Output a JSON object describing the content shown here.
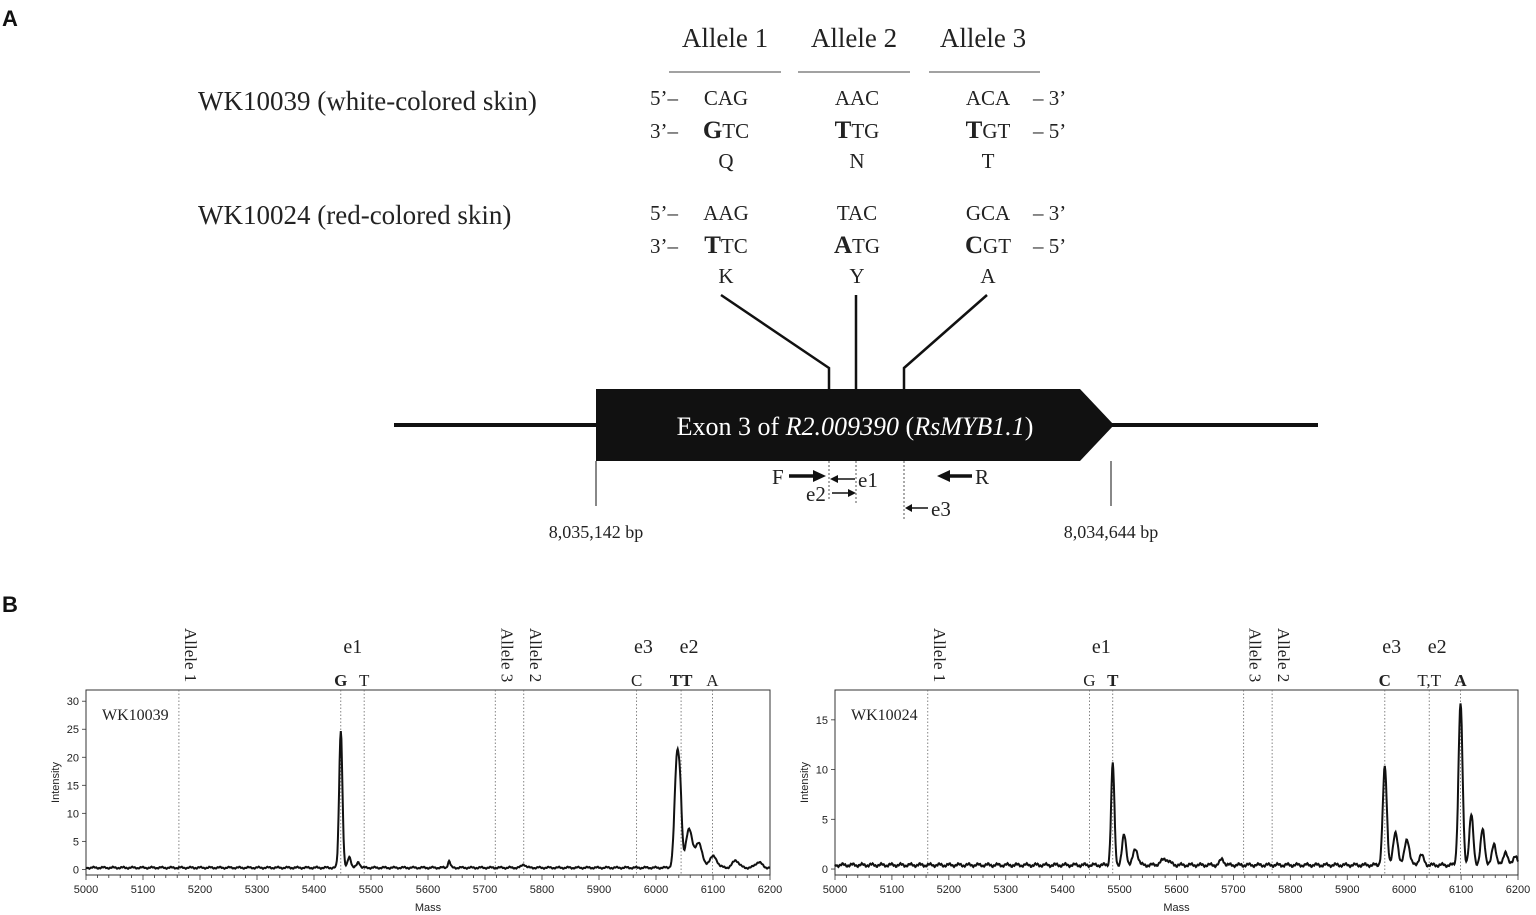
{
  "panel_a": {
    "letter": "A",
    "allele_headers": [
      "Allele 1",
      "Allele 2",
      "Allele 3"
    ],
    "samples": [
      {
        "name": "WK10039 (white-colored skin)",
        "strand_top_prefix": "5’–",
        "strand_top_suffix": "– 3’",
        "strand_bottom_prefix": "3’–",
        "strand_bottom_suffix": "– 5’",
        "codons_top": [
          "CAG",
          "AAC",
          "ACA"
        ],
        "codons_bottom_bold": [
          "G",
          "T",
          "T"
        ],
        "codons_bottom_rest": [
          "TC",
          "TG",
          "GT"
        ],
        "amino_acids": [
          "Q",
          "N",
          "T"
        ]
      },
      {
        "name": "WK10024 (red-colored skin)",
        "strand_top_prefix": "5’–",
        "strand_top_suffix": "– 3’",
        "strand_bottom_prefix": "3’–",
        "strand_bottom_suffix": "– 5’",
        "codons_top": [
          "AAG",
          "TAC",
          "GCA"
        ],
        "codons_bottom_bold": [
          "T",
          "A",
          "C"
        ],
        "codons_bottom_rest": [
          "TC",
          "TG",
          "GT"
        ],
        "amino_acids": [
          "K",
          "Y",
          "A"
        ]
      }
    ],
    "exon_label_prefix": "Exon 3 of ",
    "exon_gene_id": "R2.009390",
    "exon_gene_name_open": " (",
    "exon_gene_name": "RsMYB1.1",
    "exon_gene_name_close": ")",
    "primers": {
      "forward": "F",
      "reverse": "R",
      "e1": "e1",
      "e2": "e2",
      "e3": "e3"
    },
    "coords": {
      "start": "8,035,142 bp",
      "end": "8,034,644 bp"
    }
  },
  "panel_b": {
    "letter": "B",
    "chart_data": [
      {
        "type": "line",
        "sample_label": "WK10039",
        "xlabel": "Mass",
        "ylabel": "Intensity",
        "xlim": [
          5000,
          6200
        ],
        "ylim": [
          -1,
          32
        ],
        "xticks": [
          5000,
          5100,
          5200,
          5300,
          5400,
          5500,
          5600,
          5700,
          5800,
          5900,
          6000,
          6100,
          6200
        ],
        "yticks": [
          0,
          5,
          10,
          15,
          20,
          25,
          30
        ],
        "markers": [
          {
            "mass": 5163,
            "label": "Allele 1",
            "vertical": true,
            "bold": false
          },
          {
            "mass": 5447,
            "label": "G",
            "vertical": false,
            "bold": true
          },
          {
            "mass": 5488,
            "label": "T",
            "vertical": false,
            "bold": false
          },
          {
            "mass": 5718,
            "label": "Allele 3",
            "vertical": true,
            "bold": false
          },
          {
            "mass": 5768,
            "label": "Allele 2",
            "vertical": true,
            "bold": false
          },
          {
            "mass": 5966,
            "label": "C",
            "vertical": false,
            "bold": false
          },
          {
            "mass": 6044,
            "label": "TT",
            "vertical": false,
            "bold": true
          },
          {
            "mass": 6099,
            "label": "A",
            "vertical": false,
            "bold": false
          }
        ],
        "extension_labels": [
          {
            "label": "e1",
            "mass": 5468
          },
          {
            "label": "e3",
            "mass": 5978
          },
          {
            "label": "e2",
            "mass": 6058
          }
        ],
        "peaks": [
          {
            "mass": 5447,
            "height": 24.5,
            "width": 4
          },
          {
            "mass": 5462,
            "height": 2.0,
            "width": 4
          },
          {
            "mass": 5478,
            "height": 1.0,
            "width": 4
          },
          {
            "mass": 5637,
            "height": 1.2,
            "width": 3
          },
          {
            "mass": 5768,
            "height": 0.6,
            "width": 5
          },
          {
            "mass": 6037,
            "height": 20.0,
            "width": 6
          },
          {
            "mass": 6043,
            "height": 8.0,
            "width": 4
          },
          {
            "mass": 6058,
            "height": 7.0,
            "width": 8
          },
          {
            "mass": 6075,
            "height": 4.5,
            "width": 8
          },
          {
            "mass": 6100,
            "height": 2.0,
            "width": 10
          },
          {
            "mass": 6140,
            "height": 1.3,
            "width": 8
          },
          {
            "mass": 6180,
            "height": 1.0,
            "width": 8
          }
        ],
        "baseline": 0.3
      },
      {
        "type": "line",
        "sample_label": "WK10024",
        "xlabel": "Mass",
        "ylabel": "Intensity",
        "xlim": [
          5000,
          6200
        ],
        "ylim": [
          -0.6,
          18
        ],
        "xticks": [
          5000,
          5100,
          5200,
          5300,
          5400,
          5500,
          5600,
          5700,
          5800,
          5900,
          6000,
          6100,
          6200
        ],
        "yticks": [
          0,
          5,
          10,
          15
        ],
        "markers": [
          {
            "mass": 5163,
            "label": "Allele 1",
            "vertical": true,
            "bold": false
          },
          {
            "mass": 5447,
            "label": "G",
            "vertical": false,
            "bold": false
          },
          {
            "mass": 5488,
            "label": "T",
            "vertical": false,
            "bold": true
          },
          {
            "mass": 5718,
            "label": "Allele 3",
            "vertical": true,
            "bold": false
          },
          {
            "mass": 5768,
            "label": "Allele 2",
            "vertical": true,
            "bold": false
          },
          {
            "mass": 5966,
            "label": "C",
            "vertical": false,
            "bold": true
          },
          {
            "mass": 6044,
            "label": "T,T",
            "vertical": false,
            "bold": false
          },
          {
            "mass": 6099,
            "label": "A",
            "vertical": false,
            "bold": true
          }
        ],
        "extension_labels": [
          {
            "label": "e1",
            "mass": 5468
          },
          {
            "label": "e3",
            "mass": 5978
          },
          {
            "label": "e2",
            "mass": 6058
          }
        ],
        "peaks": [
          {
            "mass": 5488,
            "height": 10.2,
            "width": 4
          },
          {
            "mass": 5508,
            "height": 3.0,
            "width": 5
          },
          {
            "mass": 5528,
            "height": 1.6,
            "width": 6
          },
          {
            "mass": 5580,
            "height": 0.6,
            "width": 10
          },
          {
            "mass": 5680,
            "height": 0.6,
            "width": 5
          },
          {
            "mass": 5966,
            "height": 9.8,
            "width": 5
          },
          {
            "mass": 5985,
            "height": 3.2,
            "width": 6
          },
          {
            "mass": 6005,
            "height": 2.6,
            "width": 6
          },
          {
            "mass": 6030,
            "height": 1.0,
            "width": 6
          },
          {
            "mass": 6099,
            "height": 16.2,
            "width": 5
          },
          {
            "mass": 6118,
            "height": 5.0,
            "width": 5
          },
          {
            "mass": 6138,
            "height": 3.6,
            "width": 5
          },
          {
            "mass": 6158,
            "height": 2.2,
            "width": 5
          },
          {
            "mass": 6178,
            "height": 1.4,
            "width": 5
          },
          {
            "mass": 6195,
            "height": 1.0,
            "width": 5
          }
        ],
        "baseline": 0.4
      }
    ]
  }
}
